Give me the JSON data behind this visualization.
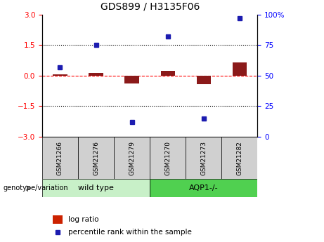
{
  "title": "GDS899 / H3135F06",
  "samples": [
    "GSM21266",
    "GSM21276",
    "GSM21279",
    "GSM21270",
    "GSM21273",
    "GSM21282"
  ],
  "log_ratio": [
    0.05,
    0.12,
    -0.38,
    0.22,
    -0.42,
    0.65
  ],
  "percentile_rank": [
    57,
    75,
    12,
    82,
    15,
    97
  ],
  "wild_type_label": "wild type",
  "aqp1_label": "AQP1-/-",
  "genotype_label": "genotype/variation",
  "ylim_left": [
    -3,
    3
  ],
  "ylim_right": [
    0,
    100
  ],
  "yticks_left": [
    -3,
    -1.5,
    0,
    1.5,
    3
  ],
  "yticks_right": [
    0,
    25,
    50,
    75,
    100
  ],
  "hline_dotted_values": [
    1.5,
    -1.5
  ],
  "bar_color_red": "#8B1A1A",
  "dot_color_blue": "#1C1CB0",
  "wt_box_color": "#C8F0C8",
  "aqp1_box_color": "#50D050",
  "sample_box_color": "#D0D0D0",
  "bar_width": 0.4,
  "legend_log_ratio_color": "#CC2200",
  "legend_percentile_color": "#1C1CB0"
}
